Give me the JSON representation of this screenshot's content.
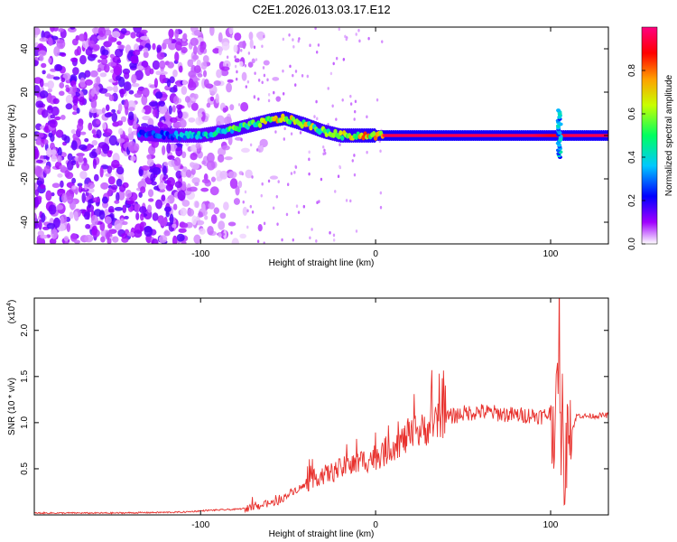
{
  "title": "C2E1.2026.013.03.17.E12",
  "chart_data": [
    {
      "type": "heatmap",
      "name": "spectrogram",
      "xlabel": "Height of straight line (km)",
      "ylabel": "Frequency (Hz)",
      "xlim": [
        -195,
        133
      ],
      "ylim": [
        -50,
        50
      ],
      "xticks": [
        -100,
        0,
        100
      ],
      "yticks": [
        -40,
        -20,
        0,
        20,
        40
      ],
      "colorbar": {
        "label": "Normalized spectral amplitude",
        "range": [
          0,
          1
        ],
        "ticks": [
          0.0,
          0.2,
          0.4,
          0.6,
          0.8
        ],
        "colors": [
          "#ffffff",
          "#a000ff",
          "#0000ff",
          "#00c8ff",
          "#00ff60",
          "#c8ff00",
          "#ffa000",
          "#ff0000",
          "#ff0080"
        ]
      },
      "ridge": {
        "x": [
          -135,
          -120,
          -100,
          -85,
          -70,
          -60,
          -52,
          -40,
          -30,
          -20,
          -10,
          0,
          5,
          20,
          60,
          90,
          100,
          105,
          110,
          133
        ],
        "freq": [
          1,
          0,
          0,
          2,
          5,
          7,
          8,
          5,
          2,
          0,
          0,
          0,
          0,
          0,
          0,
          0,
          0,
          0,
          0,
          0
        ],
        "amplitude": [
          0.3,
          0.35,
          0.45,
          0.55,
          0.6,
          0.75,
          0.8,
          0.7,
          0.65,
          0.75,
          0.8,
          0.85,
          0.95,
          0.95,
          0.95,
          0.95,
          0.9,
          0.9,
          0.95,
          0.95
        ]
      },
      "burst": {
        "x": 105,
        "freq_min": -10,
        "freq_max": 12
      }
    },
    {
      "type": "line",
      "name": "snr",
      "xlabel": "Height of straight line (km)",
      "ylabel": "SNR (10 * v/v)",
      "yscale_label": "(x10",
      "yscale_exp": "4",
      "xlim": [
        -195,
        133
      ],
      "ylim": [
        0,
        2.35
      ],
      "xticks": [
        -100,
        0,
        100
      ],
      "yticks": [
        0.5,
        1.0,
        1.5,
        2.0
      ],
      "series": [
        {
          "name": "SNR",
          "color": "#e8322e",
          "x": [
            -195,
            -150,
            -110,
            -95,
            -80,
            -70,
            -62,
            -55,
            -48,
            -40,
            -35,
            -30,
            -25,
            -20,
            -15,
            -10,
            -5,
            0,
            5,
            10,
            15,
            20,
            30,
            40,
            50,
            60,
            70,
            80,
            90,
            95,
            100,
            103,
            105,
            106,
            107,
            108,
            110,
            112,
            115,
            120,
            133
          ],
          "y": [
            0.02,
            0.02,
            0.03,
            0.05,
            0.06,
            0.08,
            0.12,
            0.15,
            0.25,
            0.32,
            0.4,
            0.43,
            0.46,
            0.5,
            0.53,
            0.56,
            0.6,
            0.63,
            0.68,
            0.75,
            0.8,
            0.85,
            0.95,
            1.05,
            1.1,
            1.12,
            1.1,
            1.08,
            1.08,
            1.07,
            1.1,
            0.9,
            2.2,
            0.1,
            1.6,
            0.05,
            1.3,
            0.9,
            1.08,
            1.07,
            1.08
          ]
        }
      ]
    }
  ]
}
